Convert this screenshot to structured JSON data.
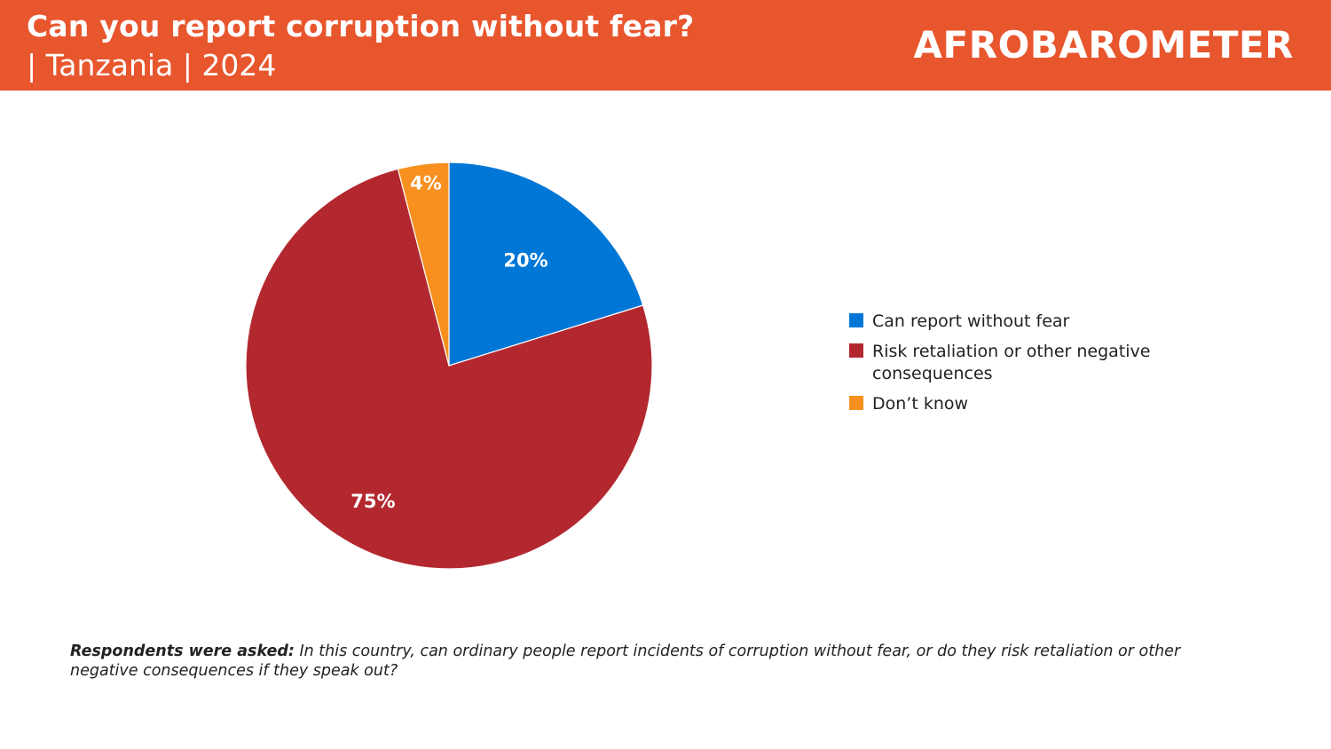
{
  "header": {
    "title": "Can you report corruption without fear?",
    "subtitle": "| Tanzania | 2024",
    "brand": "AFROBAROMETER",
    "background_color": "#e8562e"
  },
  "chart_data": {
    "type": "pie",
    "title": "Can you report corruption without fear?",
    "start_angle_deg": 0,
    "direction": "clockwise",
    "legend_position": "right",
    "slices": [
      {
        "name": "Can report without fear",
        "value": 20,
        "label": "20%",
        "color": "#0077d6"
      },
      {
        "name": "Risk retaliation or other negative consequences",
        "value": 75,
        "label": "75%",
        "color": "#b3282f"
      },
      {
        "name": "Don’t know",
        "value": 4,
        "label": "4%",
        "color": "#f7901e"
      }
    ]
  },
  "footnote": {
    "lead": "Respondents were asked:",
    "text": " In this country, can ordinary people report incidents of corruption without fear, or do they risk retaliation or other negative consequences if they speak out?"
  }
}
